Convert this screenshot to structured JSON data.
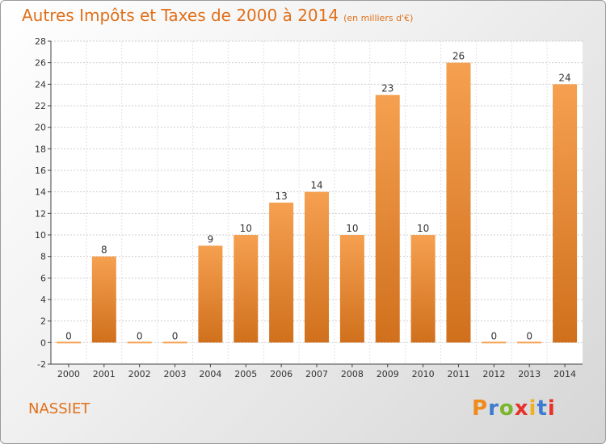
{
  "header": {
    "title": "Autres Impôts et Taxes de 2000 à 2014",
    "subtitle": "(en milliers d'€)"
  },
  "footer": {
    "commune": "NASSIET",
    "logo": "Proxiti"
  },
  "colors": {
    "accent": "#e0701a",
    "bar_light": "#f5a050",
    "bar_dark": "#d0701c",
    "logo_letters": [
      "#f08a1c",
      "#3c7bd0",
      "#7ab62c",
      "#e8302a",
      "#f0b020",
      "#3c7bd0",
      "#e8302a"
    ]
  },
  "chart_data": {
    "type": "bar",
    "title": "Autres Impôts et Taxes de 2000 à 2014",
    "subtitle": "(en milliers d'€)",
    "xlabel": "",
    "ylabel": "",
    "categories": [
      "2000",
      "2001",
      "2002",
      "2003",
      "2004",
      "2005",
      "2006",
      "2007",
      "2008",
      "2009",
      "2010",
      "2011",
      "2012",
      "2013",
      "2014"
    ],
    "values": [
      0,
      8,
      0,
      0,
      9,
      10,
      13,
      14,
      10,
      23,
      10,
      26,
      0,
      0,
      24
    ],
    "data_labels": [
      "0",
      "8",
      "0",
      "0",
      "9",
      "10",
      "13",
      "14",
      "10",
      "23",
      "10",
      "26",
      "0",
      "0",
      "24"
    ],
    "ylim": [
      -2,
      28
    ],
    "yticks": [
      -2,
      0,
      2,
      4,
      6,
      8,
      10,
      12,
      14,
      16,
      18,
      20,
      22,
      24,
      26,
      28
    ],
    "grid": true,
    "legend": "none"
  }
}
